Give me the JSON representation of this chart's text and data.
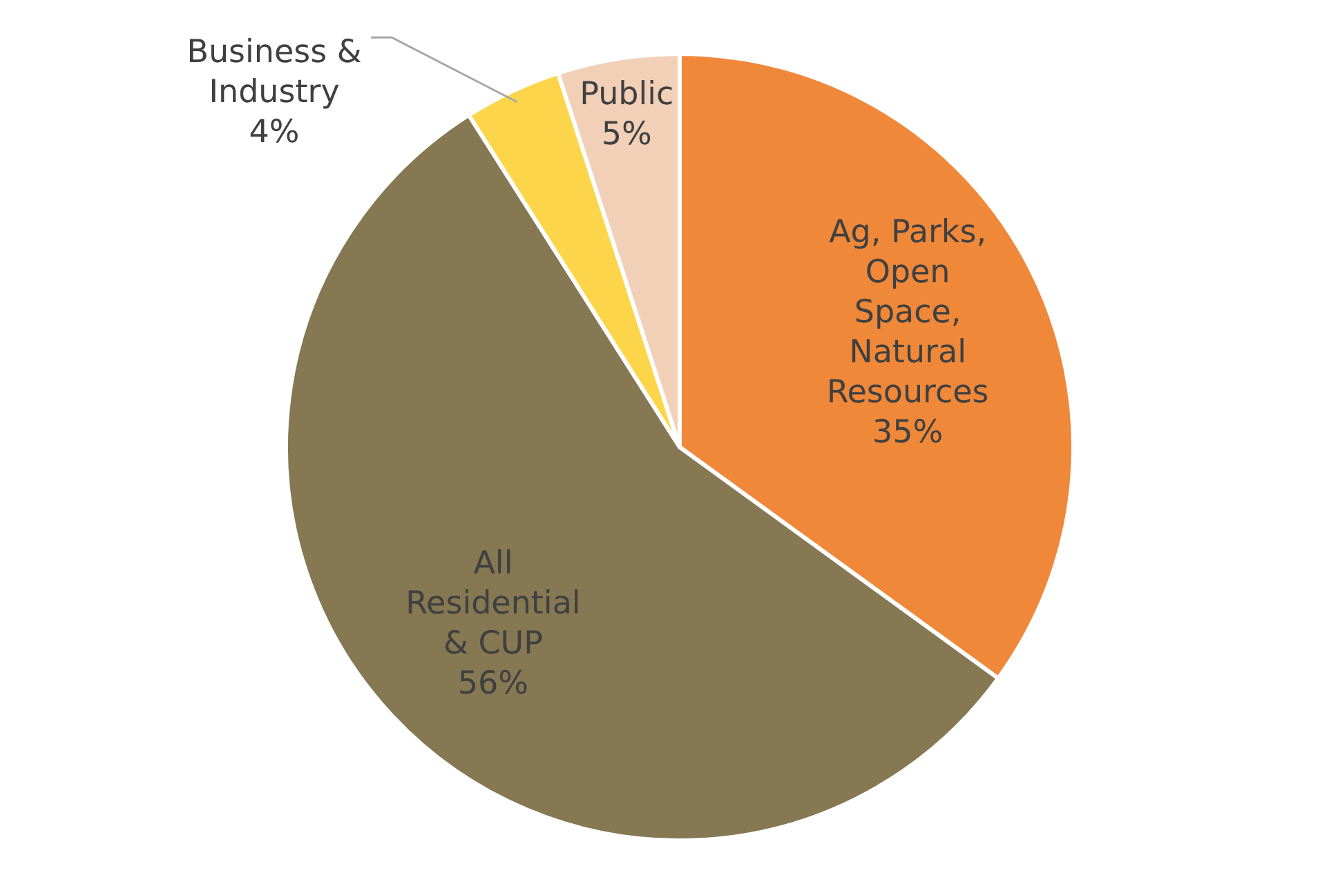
{
  "chart_data": {
    "type": "pie",
    "categories": [
      "Ag, Parks, Open Space, Natural Resources",
      "All Residential & CUP",
      "Business & Industry",
      "Public"
    ],
    "values": [
      35,
      56,
      4,
      5
    ],
    "colors": [
      "#f0883a",
      "#857853",
      "#fdd54a",
      "#f2d0b8"
    ],
    "value_labels": [
      "35%",
      "56%",
      "4%",
      "5%"
    ]
  }
}
